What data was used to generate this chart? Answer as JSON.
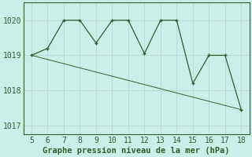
{
  "x": [
    5,
    6,
    7,
    8,
    9,
    10,
    11,
    12,
    13,
    14,
    15,
    16,
    17,
    18
  ],
  "y": [
    1019.0,
    1019.2,
    1020.0,
    1020.0,
    1019.35,
    1020.0,
    1020.0,
    1019.05,
    1020.0,
    1020.0,
    1018.2,
    1019.0,
    1019.0,
    1017.45
  ],
  "trend_x": [
    5,
    18
  ],
  "trend_y": [
    1019.0,
    1017.45
  ],
  "line_color": "#2d6030",
  "background_color": "#cceee8",
  "grid_color": "#b8d8d4",
  "spine_color": "#2d6030",
  "xlabel": "Graphe pression niveau de la mer (hPa)",
  "xlim": [
    4.5,
    18.5
  ],
  "ylim": [
    1016.75,
    1020.5
  ],
  "yticks": [
    1017,
    1018,
    1019,
    1020
  ],
  "xticks": [
    5,
    6,
    7,
    8,
    9,
    10,
    11,
    12,
    13,
    14,
    15,
    16,
    17,
    18
  ],
  "fontsize": 7.0,
  "label_fontsize": 7.5
}
